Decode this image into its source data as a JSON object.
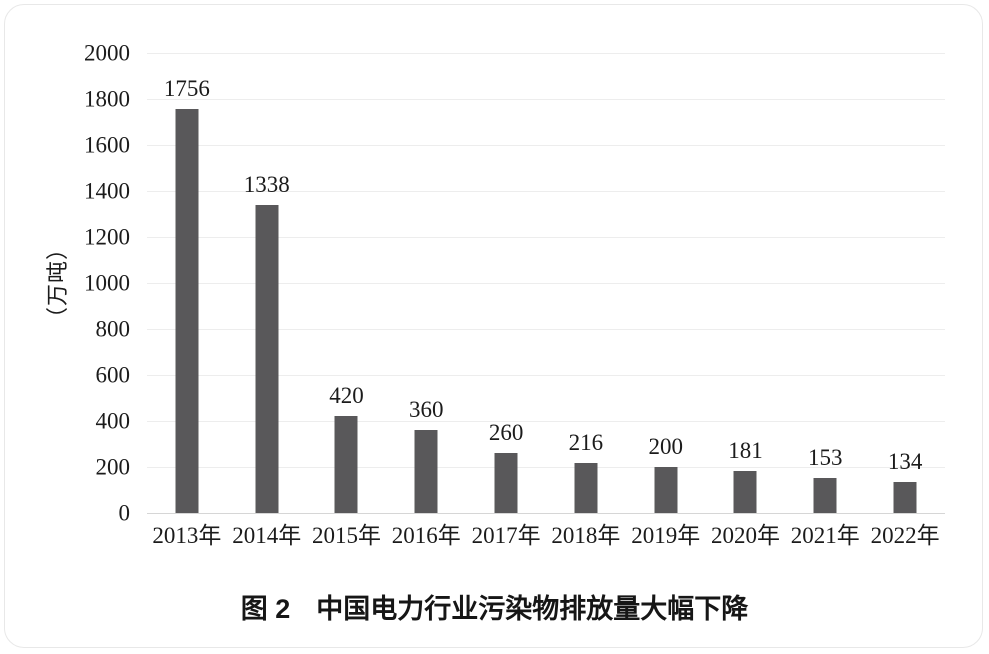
{
  "figure": {
    "caption_label": "图 2",
    "caption_title": "中国电力行业污染物排放量大幅下降",
    "y_unit_label": "（万吨）"
  },
  "chart_data": {
    "type": "bar",
    "title": "图 2 中国电力行业污染物排放量大幅下降",
    "xlabel": "",
    "ylabel": "（万吨）",
    "categories": [
      "2013年",
      "2014年",
      "2015年",
      "2016年",
      "2017年",
      "2018年",
      "2019年",
      "2020年",
      "2021年",
      "2022年"
    ],
    "values": [
      1756,
      1338,
      420,
      360,
      260,
      216,
      200,
      181,
      153,
      134
    ],
    "ylim": [
      0,
      2000
    ],
    "yticks": [
      0,
      200,
      400,
      600,
      800,
      1000,
      1200,
      1400,
      1600,
      1800,
      2000
    ],
    "grid": true,
    "legend": "none",
    "data_labels": true,
    "bar_color": "#59585a",
    "gridline_color": "#ededed",
    "baseline_color": "#d6d6d6",
    "text_color": "#1b1b1b"
  }
}
